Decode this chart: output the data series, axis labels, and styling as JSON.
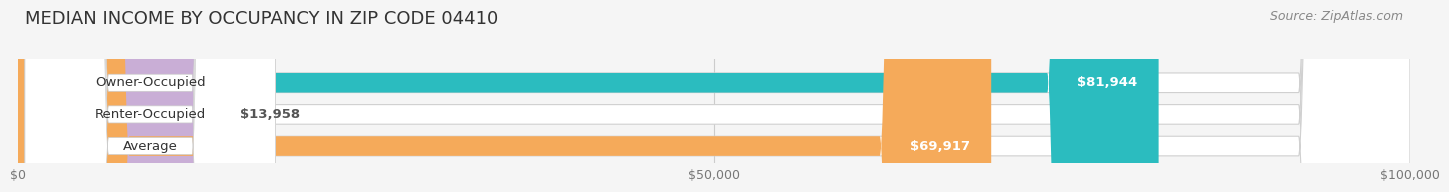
{
  "title": "MEDIAN INCOME BY OCCUPANCY IN ZIP CODE 04410",
  "source": "Source: ZipAtlas.com",
  "categories": [
    "Owner-Occupied",
    "Renter-Occupied",
    "Average"
  ],
  "values": [
    81944,
    13958,
    69917
  ],
  "bar_colors": [
    "#2bbcbf",
    "#c9aed6",
    "#f5aa5a"
  ],
  "bar_labels": [
    "$81,944",
    "$13,958",
    "$69,917"
  ],
  "label_colors": [
    "white",
    "#555555",
    "white"
  ],
  "xlim": [
    0,
    100000
  ],
  "xtick_values": [
    0,
    50000,
    100000
  ],
  "xtick_labels": [
    "$0",
    "$50,000",
    "$100,000"
  ],
  "bg_color": "#f5f5f5",
  "bar_bg_color": "#e8e8e8",
  "title_fontsize": 13,
  "label_fontsize": 9.5,
  "tick_fontsize": 9,
  "source_fontsize": 9
}
